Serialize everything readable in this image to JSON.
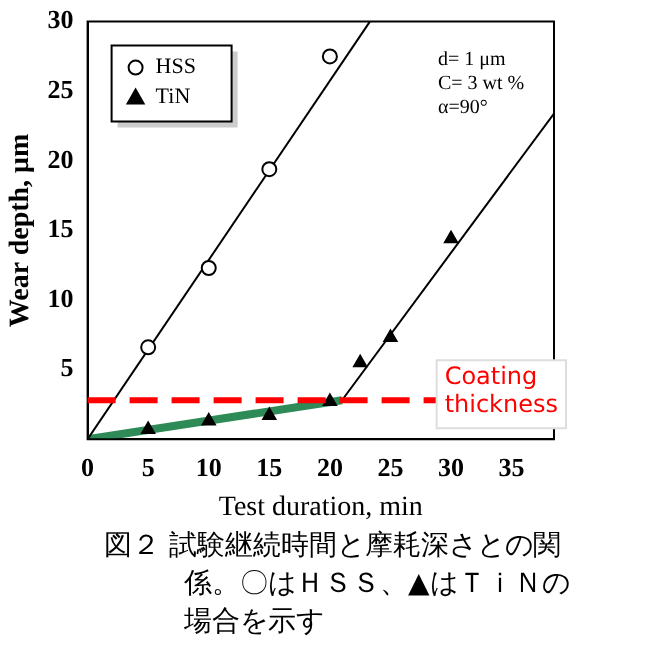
{
  "chart_data": {
    "type": "scatter",
    "xlabel": "Test duration, min",
    "ylabel": "Wear depth, μm",
    "xlim": [
      0,
      38.5
    ],
    "xticks": [
      0,
      5,
      10,
      15,
      20,
      25,
      30,
      35
    ],
    "ylim": [
      0,
      30
    ],
    "yticks": [
      5,
      10,
      15,
      20,
      25,
      30
    ],
    "legend": "top left",
    "grid": false,
    "series": [
      {
        "name": "HSS",
        "marker": "circle",
        "color": "#000000",
        "x": [
          5,
          10,
          15,
          20
        ],
        "values": [
          6.6,
          12.3,
          19.4,
          27.5
        ]
      },
      {
        "name": "TiN",
        "marker": "triangle",
        "color": "#000000",
        "x": [
          5,
          10,
          15,
          20,
          22.5,
          25,
          30
        ],
        "values": [
          0.7,
          1.3,
          1.7,
          2.7,
          5.5,
          7.3,
          14.4
        ]
      },
      {
        "type": "line",
        "marker": "none",
        "color": "#000000",
        "x": [
          0,
          23.3
        ],
        "values": [
          0,
          30
        ]
      },
      {
        "type": "line",
        "marker": "none",
        "color": "#000000",
        "x": [
          21,
          38.5
        ],
        "values": [
          2.8,
          23.4
        ]
      },
      {
        "type": "line",
        "marker": "none",
        "color": "#2e8b57",
        "x": [
          0,
          21
        ],
        "values": [
          0,
          2.8
        ]
      }
    ],
    "ref_lines": [
      {
        "axis": "y",
        "value": 2.8,
        "label": "Coating thickness",
        "color": "#ff0000",
        "line_style": "dashed"
      }
    ],
    "annotations": [
      "d= 1 μm",
      "C= 3 wt %",
      "α=90°",
      "図２ 試験継続時間と摩耗深さとの関係。〇はＨＳＳ、▲はＴｉＮの場合を示す"
    ]
  }
}
